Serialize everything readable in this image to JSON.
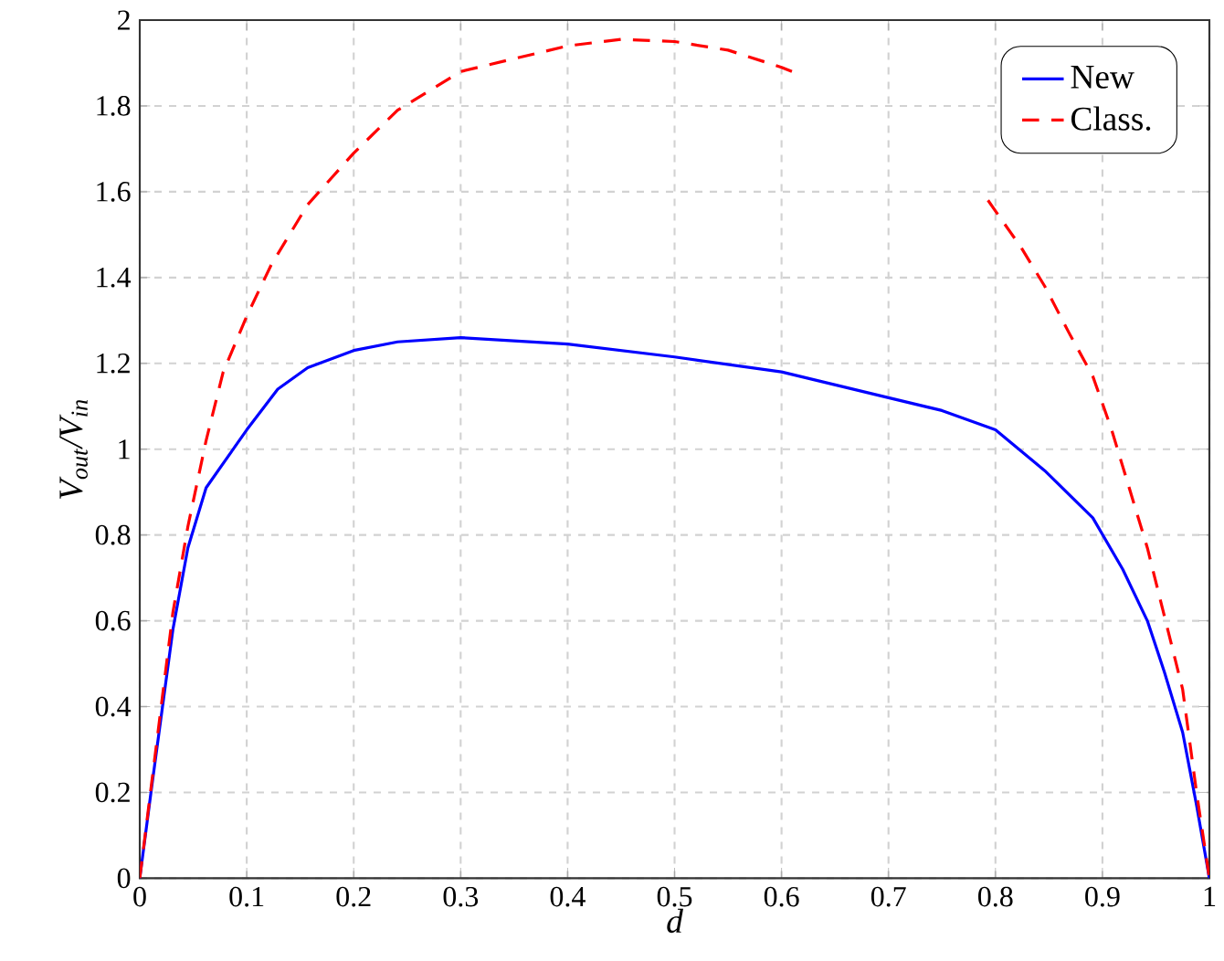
{
  "chart_data": {
    "type": "line",
    "xlabel": "d",
    "ylabel": "V$_{out}$/V$_{in}$",
    "xlim": [
      0,
      1
    ],
    "ylim": [
      0,
      2
    ],
    "xticks": [
      0,
      0.1,
      0.2,
      0.3,
      0.4,
      0.5,
      0.6,
      0.7,
      0.8,
      0.9,
      1
    ],
    "yticks": [
      0,
      0.2,
      0.4,
      0.6,
      0.8,
      1,
      1.2,
      1.4,
      1.6,
      1.8,
      2
    ],
    "grid": true,
    "legend": "top right",
    "marker": "none",
    "series": [
      {
        "name": "New",
        "color": "#0000ff",
        "line_style": "solid",
        "x": [
          0,
          0.011,
          0.031,
          0.045,
          0.062,
          0.1,
          0.129,
          0.157,
          0.2,
          0.241,
          0.3,
          0.4,
          0.5,
          0.6,
          0.7,
          0.75,
          0.8,
          0.846,
          0.891,
          0.919,
          0.942,
          0.958,
          0.975,
          0.988,
          1
        ],
        "values": [
          0,
          0.21,
          0.58,
          0.77,
          0.91,
          1.045,
          1.14,
          1.19,
          1.23,
          1.25,
          1.26,
          1.245,
          1.215,
          1.18,
          1.12,
          1.09,
          1.045,
          0.95,
          0.84,
          0.72,
          0.6,
          0.48,
          0.34,
          0.17,
          0
        ]
      },
      {
        "name": "Class.",
        "color": "#ff0000",
        "line_style": "dashed",
        "x": [
          0,
          0.011,
          0.031,
          0.045,
          0.062,
          0.078,
          0.1,
          0.123,
          0.157,
          0.2,
          0.241,
          0.3,
          0.4,
          0.45,
          0.5,
          0.55,
          0.6,
          0.62,
          0.7,
          0.793,
          0.824,
          0.846,
          0.869,
          0.891,
          0.908,
          0.925,
          0.942,
          0.958,
          0.975,
          0.988,
          1
        ],
        "values": [
          0,
          0.22,
          0.62,
          0.82,
          1.02,
          1.18,
          1.31,
          1.43,
          1.57,
          1.69,
          1.79,
          1.88,
          1.94,
          1.955,
          1.95,
          1.93,
          1.89,
          1.87,
          null,
          1.58,
          1.47,
          1.38,
          1.27,
          1.17,
          1.05,
          0.91,
          0.77,
          0.61,
          0.44,
          0.2,
          0
        ]
      }
    ]
  }
}
